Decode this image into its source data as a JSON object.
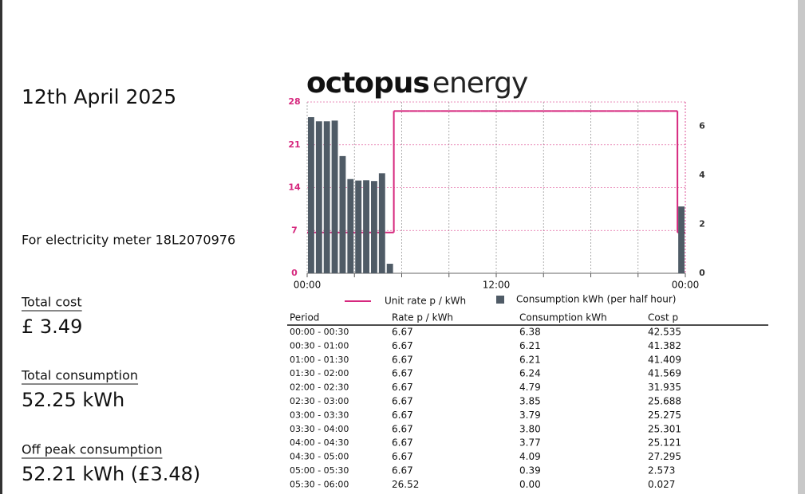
{
  "header": {
    "date": "12th April 2025",
    "meter": "For electricity meter 18L2070976",
    "logo_bold": "octopus",
    "logo_light": "energy"
  },
  "summary": [
    {
      "label": "Total cost",
      "value": "£ 3.49"
    },
    {
      "label": "Total consumption",
      "value": "52.25 kWh"
    },
    {
      "label": "Off peak consumption",
      "value": "52.21 kWh (£3.48)"
    }
  ],
  "chart_data": {
    "type": "bar-line",
    "x": [
      0,
      0.5,
      1,
      1.5,
      2,
      2.5,
      3,
      3.5,
      4,
      4.5,
      5,
      5.5,
      6,
      6.5,
      7,
      7.5,
      8,
      8.5,
      9,
      9.5,
      10,
      10.5,
      11,
      11.5,
      12,
      12.5,
      13,
      13.5,
      14,
      14.5,
      15,
      15.5,
      16,
      16.5,
      17,
      17.5,
      18,
      18.5,
      19,
      19.5,
      20,
      20.5,
      21,
      21.5,
      22,
      22.5,
      23,
      23.5
    ],
    "xlim": [
      0,
      24
    ],
    "xticks": [
      {
        "value": 0,
        "label": "00:00"
      },
      {
        "value": 3,
        "label": null
      },
      {
        "value": 6,
        "label": null
      },
      {
        "value": 9,
        "label": null
      },
      {
        "value": 12,
        "label": "12:00"
      },
      {
        "value": 15,
        "label": null
      },
      {
        "value": 18,
        "label": null
      },
      {
        "value": 21,
        "label": null
      },
      {
        "value": 24,
        "label": "00:00"
      }
    ],
    "ylim": [
      0,
      28
    ],
    "yticks": [
      0,
      7,
      14,
      21,
      28
    ],
    "y2lim": [
      0,
      7
    ],
    "y2ticks": [
      0,
      2,
      4,
      6
    ],
    "grid": true,
    "series": [
      {
        "name": "Unit rate p / kWh",
        "color": "#d6287e",
        "axis": "y",
        "kind": "step",
        "values": [
          6.67,
          6.67,
          6.67,
          6.67,
          6.67,
          6.67,
          6.67,
          6.67,
          6.67,
          6.67,
          6.67,
          26.52,
          26.52,
          26.52,
          26.52,
          26.52,
          26.52,
          26.52,
          26.52,
          26.52,
          26.52,
          26.52,
          26.52,
          26.52,
          26.52,
          26.52,
          26.52,
          26.52,
          26.52,
          26.52,
          26.52,
          26.52,
          26.52,
          26.52,
          26.52,
          26.52,
          26.52,
          26.52,
          26.52,
          26.52,
          26.52,
          26.52,
          26.52,
          26.52,
          26.52,
          26.52,
          26.52,
          6.67
        ]
      },
      {
        "name": "Consumption kWh (per half hour)",
        "color": "#4f5b66",
        "axis": "y2",
        "kind": "bar",
        "values": [
          6.38,
          6.21,
          6.21,
          6.24,
          4.79,
          3.85,
          3.79,
          3.8,
          3.77,
          4.09,
          0.39,
          0,
          0,
          0,
          0,
          0,
          0,
          0,
          0,
          0,
          0,
          0,
          0,
          0,
          0,
          0,
          0,
          0,
          0,
          0,
          0,
          0,
          0,
          0,
          0,
          0,
          0,
          0,
          0,
          0,
          0,
          0,
          0,
          0,
          0,
          0,
          0,
          2.73
        ]
      }
    ]
  },
  "table": {
    "columns": [
      "Period",
      "Rate p / kWh",
      "Consumption kWh",
      "Cost p"
    ],
    "rows": [
      [
        "00:00 - 00:30",
        "6.67",
        "6.38",
        "42.535"
      ],
      [
        "00:30 - 01:00",
        "6.67",
        "6.21",
        "41.382"
      ],
      [
        "01:00 - 01:30",
        "6.67",
        "6.21",
        "41.409"
      ],
      [
        "01:30 - 02:00",
        "6.67",
        "6.24",
        "41.569"
      ],
      [
        "02:00 - 02:30",
        "6.67",
        "4.79",
        "31.935"
      ],
      [
        "02:30 - 03:00",
        "6.67",
        "3.85",
        "25.688"
      ],
      [
        "03:00 - 03:30",
        "6.67",
        "3.79",
        "25.275"
      ],
      [
        "03:30 - 04:00",
        "6.67",
        "3.80",
        "25.301"
      ],
      [
        "04:00 - 04:30",
        "6.67",
        "3.77",
        "25.121"
      ],
      [
        "04:30 - 05:00",
        "6.67",
        "4.09",
        "27.295"
      ],
      [
        "05:00 - 05:30",
        "6.67",
        "0.39",
        "2.573"
      ],
      [
        "05:30 - 06:00",
        "26.52",
        "0.00",
        "0.027"
      ]
    ]
  }
}
